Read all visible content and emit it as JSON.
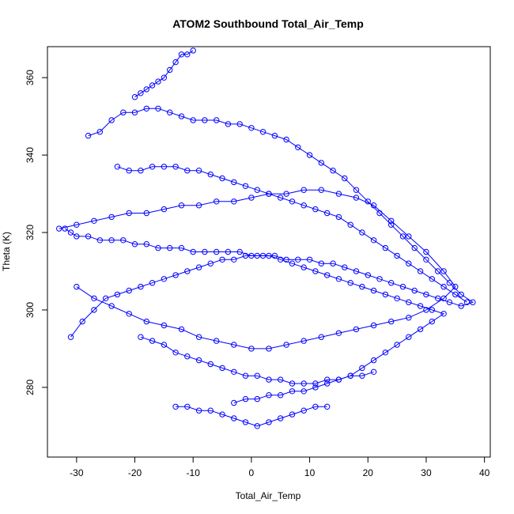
{
  "chart_data": {
    "type": "line",
    "title": "ATOM2 Southbound Total_Air_Temp",
    "xlabel": "Total_Air_Temp",
    "ylabel": "Theta (K)",
    "xlim": [
      -35,
      41
    ],
    "ylim": [
      262,
      368
    ],
    "xticks": [
      -30,
      -20,
      -10,
      0,
      10,
      20,
      30,
      40
    ],
    "yticks": [
      280,
      300,
      320,
      340,
      360
    ],
    "grid": false,
    "legend": "none",
    "marker": "open-circle",
    "series": [
      {
        "color": "#0000ff",
        "x": [
          -28,
          -26,
          -24,
          -22,
          -20,
          -18,
          -16,
          -14,
          -12,
          -10,
          -8,
          -6,
          -4,
          -2,
          0,
          2,
          4,
          6,
          8,
          10,
          12,
          14,
          16,
          18,
          20,
          22,
          24,
          26,
          28,
          30,
          32,
          34,
          36,
          38,
          36,
          34,
          32,
          30,
          28,
          26,
          24,
          22,
          20,
          18,
          16,
          14,
          12,
          10,
          8,
          6,
          4,
          2,
          0,
          -2,
          -4,
          -6,
          -8,
          -10,
          -12,
          -14,
          -16,
          -18,
          -20,
          -22,
          -24,
          -26,
          -28,
          -30,
          -31,
          -32
        ],
        "y": [
          345,
          346,
          349,
          351,
          351,
          352,
          352,
          351,
          350,
          349,
          349,
          349,
          348,
          348,
          347,
          346,
          345,
          344,
          342,
          340,
          338,
          336,
          334,
          331,
          328,
          325,
          322,
          319,
          316,
          313,
          310,
          307,
          304,
          302,
          301,
          302,
          303,
          304,
          305,
          306,
          307,
          308,
          309,
          310,
          311,
          312,
          312,
          313,
          313,
          313,
          314,
          314,
          314,
          315,
          315,
          315,
          315,
          315,
          316,
          316,
          316,
          317,
          317,
          318,
          318,
          318,
          319,
          319,
          320,
          321
        ]
      },
      {
        "color": "#0000ff",
        "x": [
          -33,
          -30,
          -27,
          -24,
          -21,
          -18,
          -15,
          -12,
          -9,
          -6,
          -3,
          0,
          3,
          6,
          9,
          12,
          15,
          18,
          21,
          24,
          27,
          30,
          33,
          35,
          33,
          30,
          27,
          24,
          21,
          18,
          15,
          12,
          9,
          6,
          3,
          0,
          -3,
          -6,
          -9,
          -12,
          -15,
          -18,
          -21,
          -24,
          -27,
          -30
        ],
        "y": [
          321,
          322,
          323,
          324,
          325,
          325,
          326,
          327,
          327,
          328,
          328,
          329,
          330,
          330,
          331,
          331,
          330,
          329,
          327,
          323,
          319,
          315,
          310,
          306,
          303,
          300,
          298,
          297,
          296,
          295,
          294,
          293,
          292,
          291,
          290,
          290,
          291,
          292,
          293,
          295,
          296,
          297,
          299,
          301,
          303,
          306
        ]
      },
      {
        "color": "#0000ff",
        "x": [
          -31,
          -29,
          -27,
          -25,
          -23,
          -21,
          -19,
          -17,
          -15,
          -13,
          -11,
          -9,
          -7,
          -5,
          -3,
          -1,
          1,
          3,
          5,
          7,
          9,
          11,
          13,
          15,
          17,
          19,
          21,
          23,
          25,
          27,
          29,
          31,
          33,
          31,
          29,
          27,
          25,
          23,
          21,
          19,
          17,
          15,
          13,
          11,
          9,
          7,
          5,
          3,
          1,
          -1,
          -3
        ],
        "y": [
          293,
          297,
          300,
          303,
          304,
          305,
          306,
          307,
          308,
          309,
          310,
          311,
          312,
          313,
          313,
          314,
          314,
          314,
          313,
          312,
          311,
          310,
          309,
          308,
          307,
          306,
          305,
          304,
          303,
          302,
          301,
          300,
          299,
          297,
          295,
          293,
          291,
          289,
          287,
          285,
          283,
          282,
          281,
          280,
          279,
          279,
          278,
          278,
          277,
          277,
          276
        ]
      },
      {
        "color": "#0000ff",
        "x": [
          -23,
          -21,
          -19,
          -17,
          -15,
          -13,
          -11,
          -9,
          -7,
          -5,
          -3,
          -1,
          1,
          3,
          5,
          7,
          9,
          11,
          13,
          15,
          17,
          19,
          21,
          23,
          25,
          27,
          29,
          31,
          33,
          35,
          37
        ],
        "y": [
          337,
          336,
          336,
          337,
          337,
          337,
          336,
          336,
          335,
          334,
          333,
          332,
          331,
          330,
          329,
          328,
          327,
          326,
          325,
          324,
          322,
          320,
          318,
          316,
          314,
          312,
          310,
          308,
          306,
          304,
          302
        ]
      },
      {
        "color": "#0000ff",
        "x": [
          -19,
          -17,
          -15,
          -13,
          -11,
          -9,
          -7,
          -5,
          -3,
          -1,
          1,
          3,
          5,
          7,
          9,
          11,
          13,
          15,
          17,
          19,
          21
        ],
        "y": [
          293,
          292,
          291,
          289,
          288,
          287,
          286,
          285,
          284,
          283,
          283,
          282,
          282,
          281,
          281,
          281,
          282,
          282,
          283,
          283,
          284
        ]
      },
      {
        "color": "#0000ff",
        "x": [
          -13,
          -11,
          -9,
          -7,
          -5,
          -3,
          -1,
          1,
          3,
          5,
          7,
          9,
          11,
          13
        ],
        "y": [
          275,
          275,
          274,
          274,
          273,
          272,
          271,
          270,
          271,
          272,
          273,
          274,
          275,
          275
        ]
      },
      {
        "color": "#0000ff",
        "x": [
          -20,
          -19,
          -18,
          -17,
          -16,
          -15,
          -14,
          -13,
          -12,
          -11,
          -10
        ],
        "y": [
          355,
          356,
          357,
          358,
          359,
          360,
          362,
          364,
          366,
          366,
          367
        ]
      }
    ]
  }
}
